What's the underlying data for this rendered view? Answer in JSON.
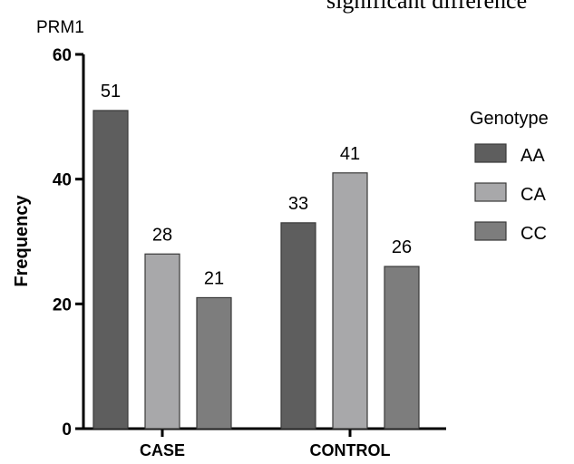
{
  "header_fragment": "significant difference",
  "chart_data": {
    "type": "bar",
    "title": "PRM1",
    "xlabel": "",
    "ylabel": "Frequency",
    "ylim": [
      0,
      60
    ],
    "yticks": [
      "0",
      "20",
      "40",
      "60"
    ],
    "categories": [
      "CASE",
      "CONTROL"
    ],
    "legend": {
      "title": "Genotype",
      "position": "right"
    },
    "series": [
      {
        "name": "AA",
        "color": "#5e5e5e",
        "values": [
          51,
          33
        ],
        "labels": [
          "51",
          "33"
        ]
      },
      {
        "name": "CA",
        "color": "#a8a8aa",
        "values": [
          28,
          41
        ],
        "labels": [
          "28",
          "41"
        ]
      },
      {
        "name": "CC",
        "color": "#7d7d7d",
        "values": [
          21,
          26
        ],
        "labels": [
          "21",
          "26"
        ]
      }
    ]
  }
}
